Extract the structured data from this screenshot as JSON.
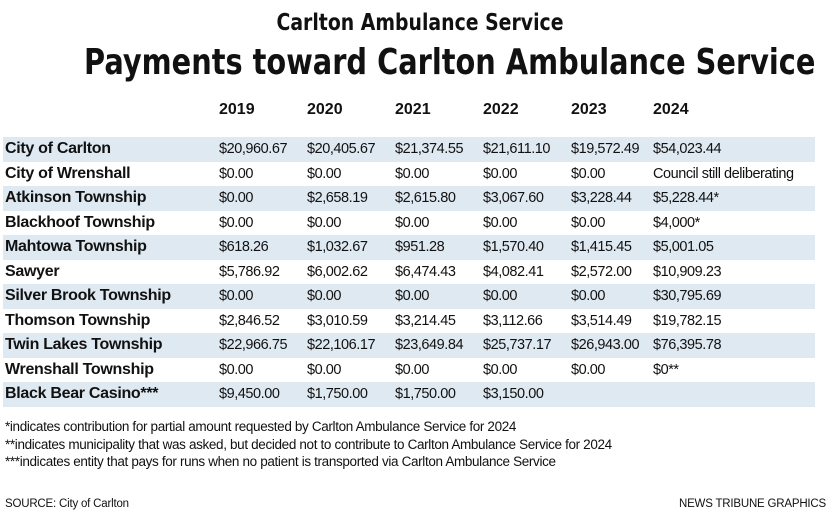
{
  "chart_data": {
    "type": "table",
    "supertitle": "Carlton Ambulance Service",
    "title": "Payments toward Carlton Ambulance Service",
    "columns": [
      "",
      "2019",
      "2020",
      "2021",
      "2022",
      "2023",
      "2024"
    ],
    "rows": [
      {
        "name": "City of Carlton",
        "values": [
          "$20,960.67",
          "$20,405.67",
          "$21,374.55",
          "$21,611.10",
          "$19,572.49",
          "$54,023.44"
        ]
      },
      {
        "name": "City of Wrenshall",
        "values": [
          "$0.00",
          "$0.00",
          "$0.00",
          "$0.00",
          "$0.00",
          "Council still deliberating"
        ]
      },
      {
        "name": "Atkinson Township",
        "values": [
          "$0.00",
          "$2,658.19",
          "$2,615.80",
          "$3,067.60",
          "$3,228.44",
          "$5,228.44*"
        ]
      },
      {
        "name": "Blackhoof Township",
        "values": [
          "$0.00",
          "$0.00",
          "$0.00",
          "$0.00",
          "$0.00",
          "$4,000*"
        ]
      },
      {
        "name": "Mahtowa Township",
        "values": [
          "$618.26",
          "$1,032.67",
          "$951.28",
          "$1,570.40",
          "$1,415.45",
          "$5,001.05"
        ]
      },
      {
        "name": "Sawyer",
        "values": [
          "$5,786.92",
          "$6,002.62",
          "$6,474.43",
          "$4,082.41",
          "$2,572.00",
          "$10,909.23"
        ]
      },
      {
        "name": "Silver Brook Township",
        "values": [
          "$0.00",
          "$0.00",
          "$0.00",
          "$0.00",
          "$0.00",
          "$30,795.69"
        ]
      },
      {
        "name": "Thomson Township",
        "values": [
          "$2,846.52",
          "$3,010.59",
          "$3,214.45",
          "$3,112.66",
          "$3,514.49",
          "$19,782.15"
        ]
      },
      {
        "name": "Twin Lakes Township",
        "values": [
          "$22,966.75",
          "$22,106.17",
          "$23,649.84",
          "$25,737.17",
          "$26,943.00",
          "$76,395.78"
        ]
      },
      {
        "name": "Wrenshall Township",
        "values": [
          "$0.00",
          "$0.00",
          "$0.00",
          "$0.00",
          "$0.00",
          "$0**"
        ]
      },
      {
        "name": "Black Bear Casino***",
        "values": [
          "$9,450.00",
          "$1,750.00",
          "$1,750.00",
          "$3,150.00",
          "",
          ""
        ]
      }
    ],
    "row_shading": "alternating",
    "shade_color": "#dfe9f2"
  },
  "notes": [
    "*indicates contribution for partial amount requested by Carlton Ambulance Service for 2024",
    "**indicates municipality that was asked, but decided not to contribute to Carlton Ambulance Service for 2024",
    "***indicates entity that pays for runs when no patient is transported via Carlton Ambulance Service"
  ],
  "source": "SOURCE: City of Carlton",
  "credit": "NEWS TRIBUNE GRAPHICS"
}
